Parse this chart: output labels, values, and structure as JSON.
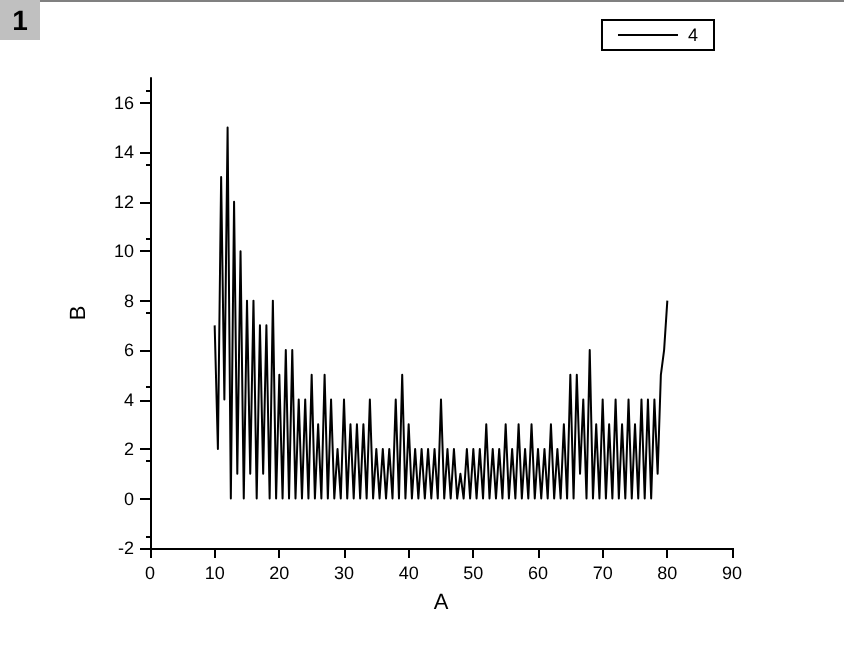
{
  "chart_data": {
    "type": "line",
    "xlabel": "A",
    "ylabel": "B",
    "annotations": [
      "1"
    ],
    "x": [
      10,
      10.5,
      11,
      11.5,
      12,
      12.5,
      13,
      13.5,
      14,
      14.5,
      15,
      15.5,
      16,
      16.5,
      17,
      17.5,
      18,
      18.5,
      19,
      19.5,
      20,
      20.5,
      21,
      21.5,
      22,
      22.5,
      23,
      23.5,
      24,
      24.5,
      25,
      25.5,
      26,
      26.5,
      27,
      27.5,
      28,
      28.5,
      29,
      29.5,
      30,
      30.5,
      31,
      31.5,
      32,
      32.5,
      33,
      33.5,
      34,
      34.5,
      35,
      35.5,
      36,
      36.5,
      37,
      37.5,
      38,
      38.5,
      39,
      39.5,
      40,
      40.5,
      41,
      41.5,
      42,
      42.5,
      43,
      43.5,
      44,
      44.5,
      45,
      45.5,
      46,
      46.5,
      47,
      47.5,
      48,
      48.5,
      49,
      49.5,
      50,
      50.5,
      51,
      51.5,
      52,
      52.5,
      53,
      53.5,
      54,
      54.5,
      55,
      55.5,
      56,
      56.5,
      57,
      57.5,
      58,
      58.5,
      59,
      59.5,
      60,
      60.5,
      61,
      61.5,
      62,
      62.5,
      63,
      63.5,
      64,
      64.5,
      65,
      65.5,
      66,
      66.5,
      67,
      67.5,
      68,
      68.5,
      69,
      69.5,
      70,
      70.5,
      71,
      71.5,
      72,
      72.5,
      73,
      73.5,
      74,
      74.5,
      75,
      75.5,
      76,
      76.5,
      77,
      77.5,
      78,
      78.5,
      79,
      79.5,
      80
    ],
    "series": [
      {
        "name": "4",
        "color": "#000000",
        "values": [
          7,
          2,
          13,
          4,
          15,
          0,
          12,
          1,
          10,
          0,
          8,
          1,
          8,
          0,
          7,
          1,
          7,
          0,
          8,
          0,
          5,
          0,
          6,
          0,
          6,
          0,
          4,
          0,
          4,
          0,
          5,
          0,
          3,
          0,
          5,
          0,
          4,
          0,
          2,
          0,
          4,
          0,
          3,
          0,
          3,
          0,
          3,
          0,
          4,
          0,
          2,
          0,
          2,
          0,
          2,
          0,
          4,
          0,
          5,
          0,
          3,
          0,
          2,
          0,
          2,
          0,
          2,
          0,
          2,
          0,
          4,
          0,
          2,
          0,
          2,
          0,
          1,
          0,
          2,
          0,
          2,
          0,
          2,
          0,
          3,
          0,
          2,
          0,
          2,
          0,
          3,
          0,
          2,
          0,
          3,
          0,
          2,
          0,
          3,
          0,
          2,
          0,
          2,
          0,
          3,
          0,
          2,
          0,
          3,
          0,
          5,
          0,
          5,
          1,
          4,
          0,
          6,
          0,
          3,
          0,
          4,
          0,
          3,
          0,
          4,
          0,
          3,
          0,
          4,
          0,
          3,
          0,
          4,
          0,
          4,
          0,
          4,
          1,
          5,
          6,
          8
        ]
      }
    ],
    "xlim": [
      0,
      90
    ],
    "xticks": [
      0,
      10,
      20,
      30,
      40,
      50,
      60,
      70,
      80,
      90
    ],
    "ylim": [
      -2,
      17
    ],
    "yticks": [
      -2,
      0,
      2,
      4,
      6,
      8,
      10,
      12,
      14,
      16
    ],
    "grid": false,
    "legend": "top right",
    "marker": "none",
    "line_style": "solid"
  }
}
